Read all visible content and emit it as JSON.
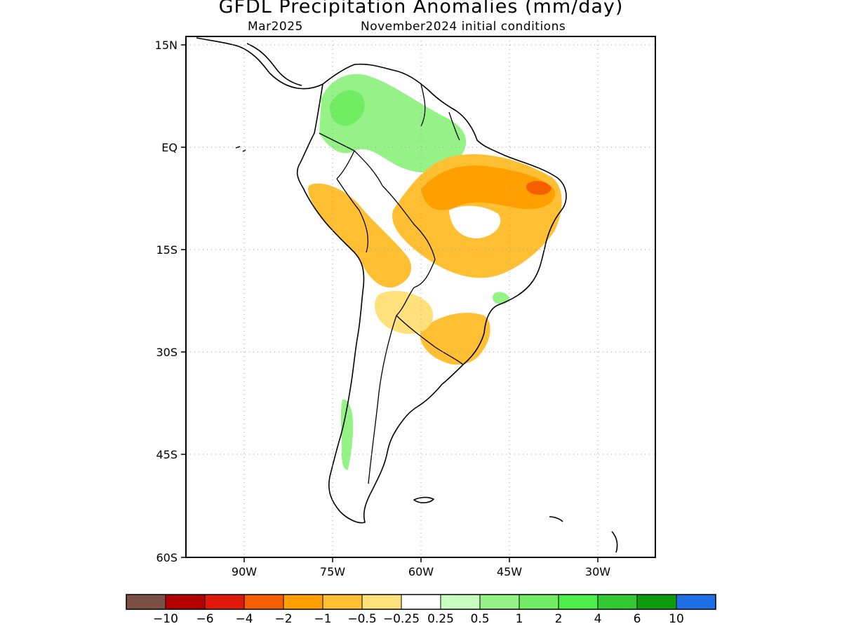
{
  "title": "GFDL Precipitation Anomalies (mm/day)",
  "subtitle_left": "Mar2025",
  "subtitle_right": "November2024 initial conditions",
  "lat_ticks": [
    "15N",
    "EQ",
    "15S",
    "30S",
    "45S",
    "60S"
  ],
  "lon_ticks": [
    "90W",
    "75W",
    "60W",
    "45W",
    "30W"
  ],
  "colorbar": {
    "colors": [
      "#7a5144",
      "#b40000",
      "#e01a0a",
      "#f55f00",
      "#ff9f00",
      "#ffbf33",
      "#ffe07a",
      "#ffffff",
      "#c6ffbe",
      "#94f286",
      "#72ec62",
      "#4ded4c",
      "#34c834",
      "#0c9c0c",
      "#1e6fe6"
    ],
    "labels": [
      "−10",
      "−6",
      "−4",
      "−2",
      "−1",
      "−0.5",
      "−0.25",
      "0.25",
      "0.5",
      "1",
      "2",
      "4",
      "6",
      "10"
    ]
  }
}
